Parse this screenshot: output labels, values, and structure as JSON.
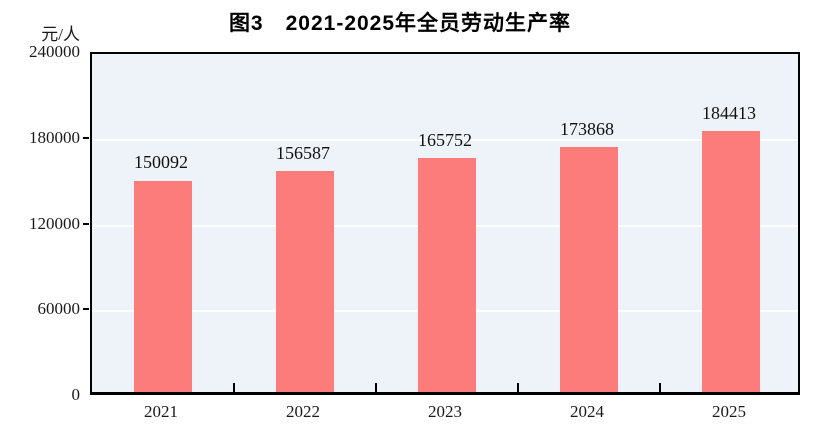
{
  "chart_data": {
    "type": "bar",
    "title": "图3　2021-2025年全员劳动生产率",
    "unit_label": "元/人",
    "categories": [
      "2021",
      "2022",
      "2023",
      "2024",
      "2025"
    ],
    "values": [
      150092,
      156587,
      165752,
      173868,
      184413
    ],
    "value_labels": [
      "150092",
      "156587",
      "165752",
      "173868",
      "184413"
    ],
    "xlabel": "",
    "ylabel": "元/人",
    "ylim": [
      0,
      240000
    ],
    "yticks": [
      0,
      60000,
      120000,
      180000,
      240000
    ],
    "ytick_labels": [
      "0",
      "60000",
      "120000",
      "180000",
      "240000"
    ],
    "grid": true,
    "legend": "none",
    "bar_color": "#fc7c7c",
    "plot_background": "#edf3f8",
    "gridline_color": "#ffffff",
    "border_color": "#000000"
  }
}
